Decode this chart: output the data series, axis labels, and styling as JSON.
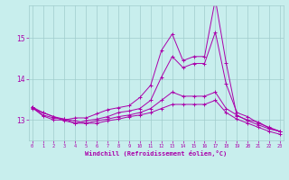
{
  "xlabel": "Windchill (Refroidissement éolien,°C)",
  "x_ticks": [
    0,
    1,
    2,
    3,
    4,
    5,
    6,
    7,
    8,
    9,
    10,
    11,
    12,
    13,
    14,
    15,
    16,
    17,
    18,
    19,
    20,
    21,
    22,
    23
  ],
  "ylim": [
    12.5,
    15.8
  ],
  "yticks": [
    13,
    14,
    15
  ],
  "bg_color": "#c8eeed",
  "grid_color": "#a0cccc",
  "line_color": "#aa00aa",
  "curves": [
    [
      13.3,
      13.1,
      13.0,
      13.0,
      13.05,
      13.05,
      13.15,
      13.25,
      13.3,
      13.35,
      13.55,
      13.85,
      14.7,
      15.1,
      14.45,
      14.55,
      14.55,
      15.95,
      14.4,
      13.1,
      13.0,
      12.95,
      12.8,
      12.72
    ],
    [
      13.32,
      13.12,
      13.05,
      13.02,
      12.92,
      12.98,
      13.02,
      13.08,
      13.18,
      13.22,
      13.28,
      13.48,
      14.05,
      14.55,
      14.28,
      14.38,
      14.38,
      15.15,
      13.88,
      13.18,
      13.08,
      12.92,
      12.82,
      12.72
    ],
    [
      13.32,
      13.18,
      13.08,
      12.98,
      12.92,
      12.92,
      12.98,
      13.02,
      13.08,
      13.12,
      13.18,
      13.28,
      13.48,
      13.68,
      13.58,
      13.58,
      13.58,
      13.68,
      13.28,
      13.12,
      12.98,
      12.88,
      12.78,
      12.72
    ],
    [
      13.28,
      13.18,
      13.08,
      13.02,
      12.98,
      12.92,
      12.92,
      12.98,
      13.02,
      13.08,
      13.12,
      13.18,
      13.28,
      13.38,
      13.38,
      13.38,
      13.38,
      13.48,
      13.18,
      13.02,
      12.92,
      12.82,
      12.72,
      12.65
    ]
  ]
}
